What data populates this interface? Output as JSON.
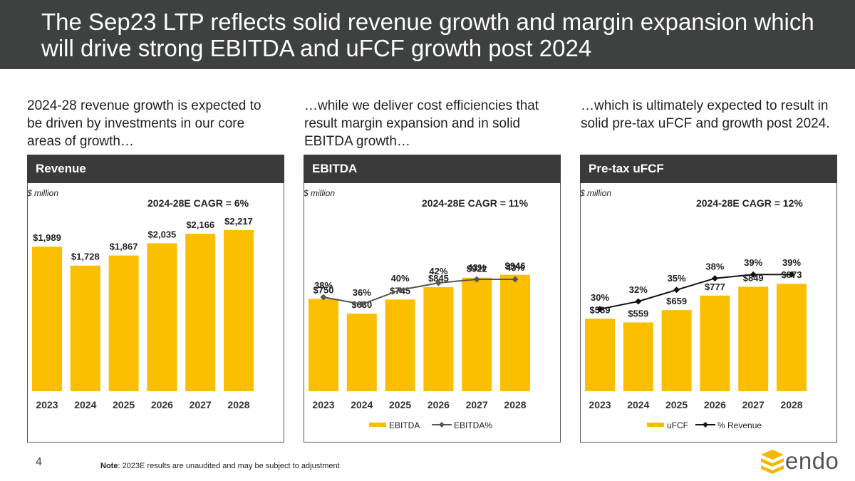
{
  "header": {
    "title": "The Sep23 LTP reflects solid revenue growth and margin expansion which will drive strong EBITDA and uFCF growth post 2024"
  },
  "intro": [
    "2024-28 revenue growth is expected to be driven by investments in our core areas of growth…",
    "…while we deliver cost efficiencies that result margin expansion and in solid EBITDA growth…",
    "…which is ultimately expected to result in solid pre-tax uFCF and growth post 2024."
  ],
  "colors": {
    "header_bg": "#3f4140",
    "bar": "#fbbf00",
    "line": "#555555",
    "line2": "#111111"
  },
  "chart_data": [
    {
      "type": "bar",
      "title": "Revenue",
      "unit": "$ million",
      "cagr": "2024-28E CAGR = 6%",
      "categories": [
        "2023",
        "2024",
        "2025",
        "2026",
        "2027",
        "2028"
      ],
      "values": [
        1989,
        1728,
        1867,
        2035,
        2166,
        2217
      ],
      "labels": [
        "$1,989",
        "$1,728",
        "$1,867",
        "$2,035",
        "$2,166",
        "$2,217"
      ],
      "legend": []
    },
    {
      "type": "bar",
      "title": "EBITDA",
      "unit": "$ million",
      "cagr": "2024-28E CAGR = 11%",
      "categories": [
        "2023",
        "2024",
        "2025",
        "2026",
        "2027",
        "2028"
      ],
      "values": [
        750,
        630,
        745,
        845,
        922,
        946
      ],
      "labels": [
        "$750",
        "$630",
        "$745",
        "$845",
        "$922",
        "$946"
      ],
      "line": {
        "name": "EBITDA%",
        "values": [
          38,
          36,
          40,
          42,
          43,
          43
        ],
        "labels": [
          "38%",
          "36%",
          "40%",
          "42%",
          "43%",
          "43%"
        ],
        "marker": "diamond"
      },
      "legend": [
        "EBITDA",
        "EBITDA%"
      ]
    },
    {
      "type": "bar",
      "title": "Pre-tax uFCF",
      "unit": "$ million",
      "cagr": "2024-28E CAGR = 12%",
      "categories": [
        "2023",
        "2024",
        "2025",
        "2026",
        "2027",
        "2028"
      ],
      "values": [
        589,
        559,
        659,
        777,
        849,
        873
      ],
      "labels": [
        "$589",
        "$559",
        "$659",
        "$777",
        "$849",
        "$873"
      ],
      "line": {
        "name": "% Revenue",
        "values": [
          30,
          32,
          35,
          38,
          39,
          39
        ],
        "labels": [
          "30%",
          "32%",
          "35%",
          "38%",
          "39%",
          "39%"
        ],
        "marker": "diamond"
      },
      "legend": [
        "uFCF",
        "% Revenue"
      ]
    }
  ],
  "footer": {
    "page": "4",
    "note_label": "Note",
    "note_text": ": 2023E results are unaudited and may be subject to adjustment",
    "logo": "endo"
  }
}
